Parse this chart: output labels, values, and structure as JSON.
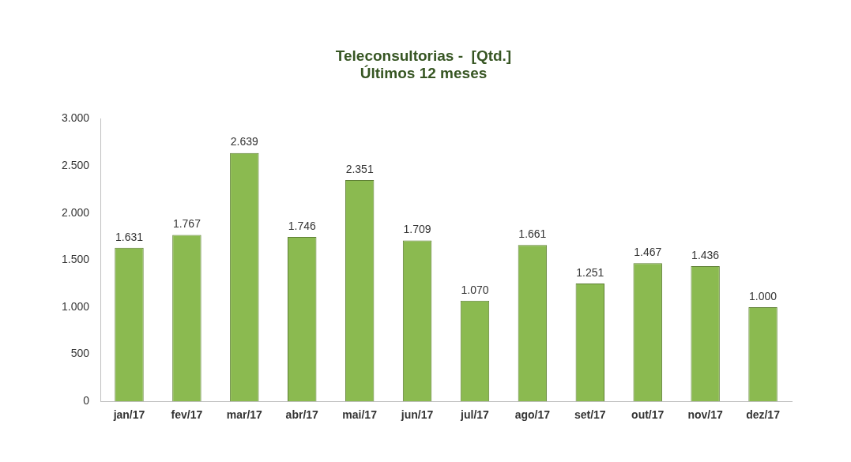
{
  "chart_data": {
    "type": "bar",
    "title": [
      "Teleconsultorias -  [Qtd.]",
      "Últimos 12 meses"
    ],
    "categories": [
      "jan/17",
      "fev/17",
      "mar/17",
      "abr/17",
      "mai/17",
      "jun/17",
      "jul/17",
      "ago/17",
      "set/17",
      "out/17",
      "nov/17",
      "dez/17"
    ],
    "values": [
      1631,
      1767,
      2639,
      1746,
      2351,
      1709,
      1070,
      1661,
      1251,
      1467,
      1436,
      1000
    ],
    "value_labels": [
      "1.631",
      "1.767",
      "2.639",
      "1.746",
      "2.351",
      "1.709",
      "1.070",
      "1.661",
      "1.251",
      "1.467",
      "1.436",
      "1.000"
    ],
    "color": "#8bba50",
    "ylim": [
      0,
      3000
    ],
    "yticks": [
      {
        "value": 0,
        "label": "0"
      },
      {
        "value": 500,
        "label": "500"
      },
      {
        "value": 1000,
        "label": "1.000"
      },
      {
        "value": 1500,
        "label": "1.500"
      },
      {
        "value": 2000,
        "label": "2.000"
      },
      {
        "value": 2500,
        "label": "2.500"
      },
      {
        "value": 3000,
        "label": "3.000"
      }
    ],
    "grid": false,
    "legend": false
  }
}
